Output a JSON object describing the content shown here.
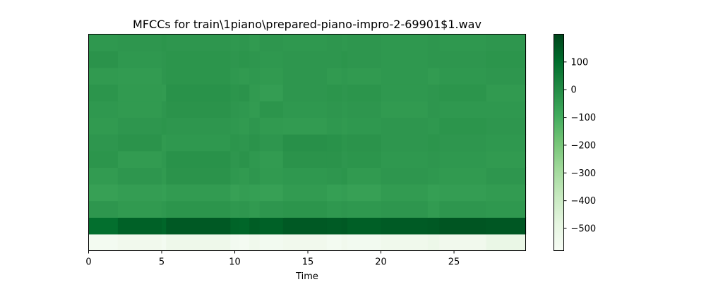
{
  "chart_data": {
    "type": "heatmap",
    "title": "MFCCs for train\\1piano\\prepared-piano-impro-2-69901$1.wav",
    "xlabel": "Time",
    "ylabel": "",
    "xlim": [
      0,
      29.9
    ],
    "x_ticks": [
      0,
      5,
      10,
      15,
      20,
      25
    ],
    "x_tick_labels": [
      "0",
      "5",
      "10",
      "15",
      "20",
      "25"
    ],
    "n_coefficients": 13,
    "colorbar": {
      "range": [
        -580,
        200
      ],
      "ticks": [
        100,
        0,
        -100,
        -200,
        -300,
        -400,
        -500
      ],
      "tick_labels": [
        "100",
        "0",
        "−100",
        "−200",
        "−300",
        "−400",
        "−500"
      ],
      "colormap": "Greens"
    },
    "segment_boundaries": [
      0,
      2.0,
      5.0,
      5.3,
      9.7,
      10.3,
      11.0,
      11.7,
      13.3,
      16.3,
      17.3,
      17.7,
      20.0,
      23.2,
      24.0,
      27.2,
      29.9
    ],
    "rows": [
      [
        -560,
        -545,
        -560,
        -530,
        -555,
        -565,
        -540,
        -555,
        -545,
        -560,
        -545,
        -555,
        -540,
        -525,
        -545,
        -510,
        -470
      ],
      [
        95,
        130,
        120,
        150,
        125,
        120,
        140,
        130,
        150,
        145,
        150,
        135,
        145,
        150,
        160,
        155,
        170
      ],
      [
        -30,
        -40,
        -35,
        -25,
        -35,
        -30,
        -40,
        -30,
        -25,
        -35,
        -30,
        -35,
        -30,
        -45,
        -30,
        -35,
        -50
      ],
      [
        -60,
        -50,
        -55,
        -45,
        -60,
        -50,
        -55,
        -60,
        -45,
        -55,
        -50,
        -60,
        -45,
        -55,
        -50,
        -45,
        -60
      ],
      [
        -45,
        -30,
        -40,
        -20,
        -35,
        -40,
        -30,
        -40,
        -35,
        -30,
        -25,
        -40,
        -30,
        -35,
        -40,
        -30,
        -35
      ],
      [
        -25,
        -45,
        -35,
        -15,
        -30,
        -20,
        -35,
        -45,
        -20,
        -20,
        -30,
        -25,
        -35,
        -30,
        -35,
        -40,
        -30
      ],
      [
        -30,
        -20,
        -40,
        -35,
        -25,
        -30,
        -20,
        -30,
        -10,
        -15,
        -25,
        -20,
        -30,
        -25,
        -30,
        -35,
        -25
      ],
      [
        -40,
        -30,
        -25,
        -30,
        -35,
        -40,
        -30,
        -40,
        -45,
        -35,
        -40,
        -35,
        -30,
        -35,
        -25,
        -30,
        -35
      ],
      [
        -35,
        -40,
        -30,
        -20,
        -30,
        -35,
        -45,
        -25,
        -35,
        -30,
        -35,
        -30,
        -40,
        -30,
        -35,
        -35,
        -30
      ],
      [
        -25,
        -40,
        -45,
        -15,
        -25,
        -20,
        -40,
        -50,
        -30,
        -25,
        -30,
        -25,
        -35,
        -30,
        -25,
        -40,
        -35
      ],
      [
        -40,
        -45,
        -30,
        -25,
        -35,
        -40,
        -35,
        -40,
        -30,
        -40,
        -35,
        -40,
        -35,
        -45,
        -35,
        -30,
        -40
      ],
      [
        -20,
        -35,
        -30,
        -25,
        -30,
        -25,
        -30,
        -35,
        -30,
        -30,
        -25,
        -30,
        -35,
        -30,
        -30,
        -25,
        -30
      ],
      [
        -35,
        -30,
        -25,
        -30,
        -35,
        -30,
        -40,
        -30,
        -35,
        -30,
        -35,
        -30,
        -35,
        -30,
        -35,
        -30,
        -40
      ]
    ]
  }
}
